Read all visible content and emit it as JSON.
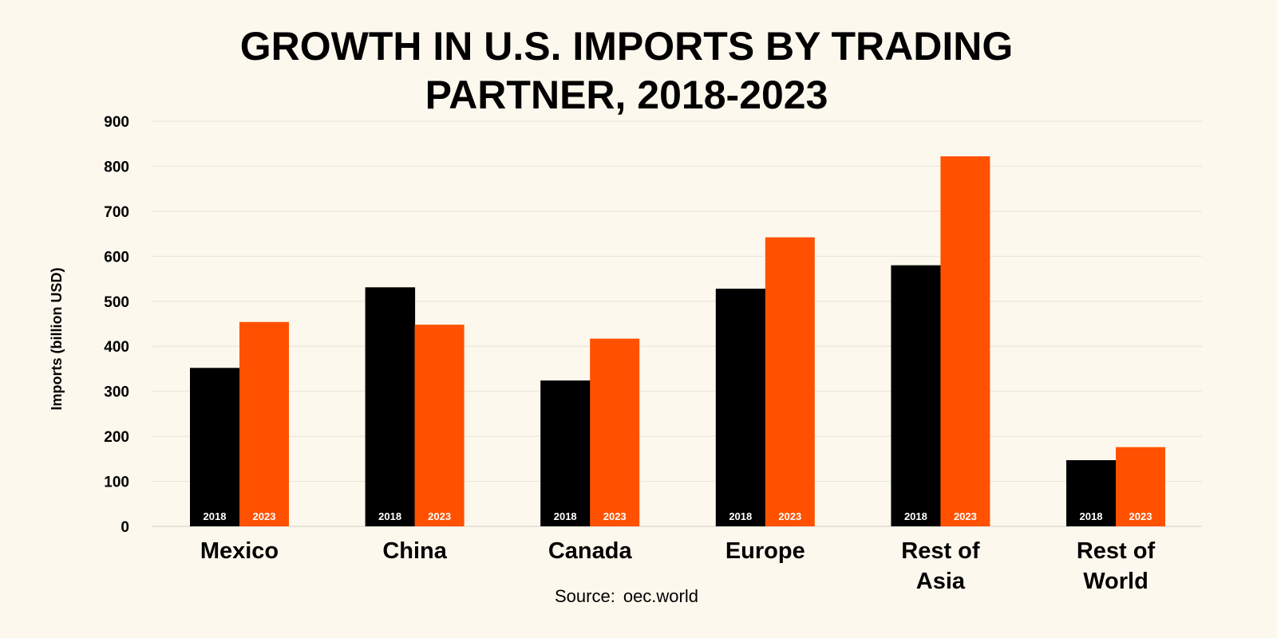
{
  "chart_data": {
    "type": "bar",
    "title": "GROWTH IN U.S. IMPORTS BY TRADING PARTNER, 2018-2023",
    "title_lines": [
      "GROWTH IN U.S. IMPORTS BY TRADING",
      "PARTNER, 2018-2023"
    ],
    "xlabel": "",
    "ylabel": "Imports (billion USD)",
    "ylim": [
      0,
      900
    ],
    "yticks": [
      0,
      100,
      200,
      300,
      400,
      500,
      600,
      700,
      800,
      900
    ],
    "grid": true,
    "categories": [
      "Mexico",
      "China",
      "Canada",
      "Europe",
      "Rest of Asia",
      "Rest of World"
    ],
    "category_lines": [
      [
        "Mexico"
      ],
      [
        "China"
      ],
      [
        "Canada"
      ],
      [
        "Europe"
      ],
      [
        "Rest of",
        "Asia"
      ],
      [
        "Rest of",
        "World"
      ]
    ],
    "series": [
      {
        "name": "2018",
        "color": "#000000",
        "values": [
          352,
          531,
          324,
          528,
          580,
          147
        ]
      },
      {
        "name": "2023",
        "color": "#ff5100",
        "values": [
          454,
          448,
          417,
          642,
          822,
          176
        ]
      }
    ],
    "source_label": "Source:",
    "source": "oec.world"
  }
}
